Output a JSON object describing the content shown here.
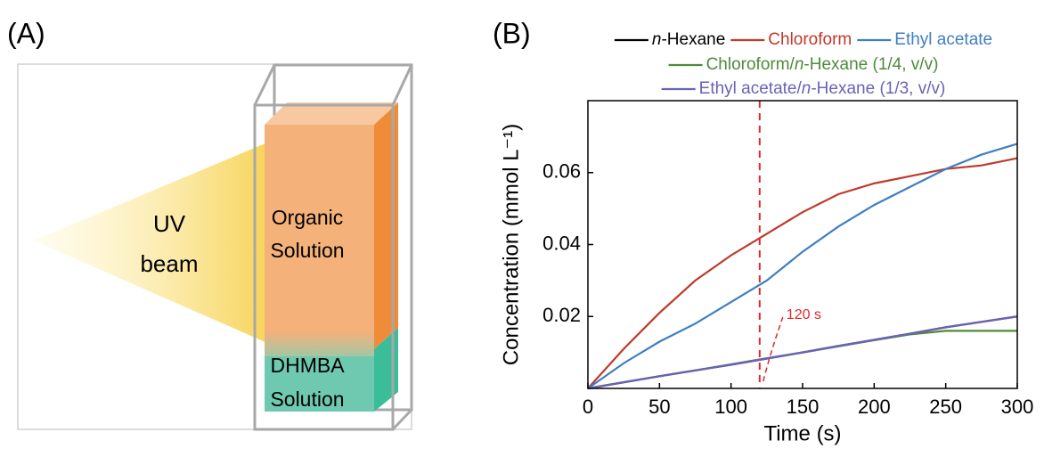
{
  "panel_a": {
    "label": "(A)",
    "beam_label": [
      "UV",
      "beam"
    ],
    "organic_label": [
      "Organic",
      "Solution"
    ],
    "aqueous_label": [
      "DHMBA",
      "Solution"
    ]
  },
  "chart_data": {
    "type": "line",
    "panel_label": "(B)",
    "x_label": "Time (s)",
    "y_label": "Concentration (mmol L⁻¹)",
    "x": [
      0,
      25,
      50,
      75,
      100,
      125,
      150,
      175,
      200,
      225,
      250,
      275,
      300
    ],
    "series": [
      {
        "name": "n-Hexane",
        "color": "#000000",
        "values": [
          0,
          0.0017,
          0.0034,
          0.005,
          0.0066,
          0.0083,
          0.01,
          0.0118,
          0.0135,
          0.0152,
          0.017,
          0.0185,
          0.02
        ]
      },
      {
        "name": "Chloroform",
        "color": "#c0392b",
        "values": [
          0,
          0.011,
          0.021,
          0.03,
          0.037,
          0.043,
          0.049,
          0.054,
          0.057,
          0.059,
          0.061,
          0.062,
          0.064
        ]
      },
      {
        "name": "Ethyl acetate",
        "color": "#3f7fbf",
        "values": [
          0,
          0.007,
          0.013,
          0.018,
          0.024,
          0.03,
          0.038,
          0.045,
          0.051,
          0.056,
          0.061,
          0.065,
          0.068
        ]
      },
      {
        "name": "Chloroform/n-Hexane (1/4, v/v)",
        "color": "#4e8a3a",
        "values": [
          0,
          0.0017,
          0.0034,
          0.005,
          0.0067,
          0.0084,
          0.01,
          0.0117,
          0.0134,
          0.015,
          0.016,
          0.016,
          0.016
        ]
      },
      {
        "name": "Ethyl acetate/n-Hexane (1/3, v/v)",
        "color": "#6a62b8",
        "values": [
          0,
          0.0017,
          0.0034,
          0.005,
          0.0066,
          0.0083,
          0.01,
          0.0118,
          0.0135,
          0.0152,
          0.017,
          0.0185,
          0.02
        ]
      }
    ],
    "xlim": [
      0,
      300
    ],
    "xticks": [
      0,
      50,
      100,
      150,
      200,
      250,
      300
    ],
    "ylim": [
      0,
      0.08
    ],
    "yticks": [
      0.02,
      0.04,
      0.06
    ],
    "reference_line": {
      "x": 120,
      "label": "120 s",
      "color": "#e0282a"
    }
  }
}
